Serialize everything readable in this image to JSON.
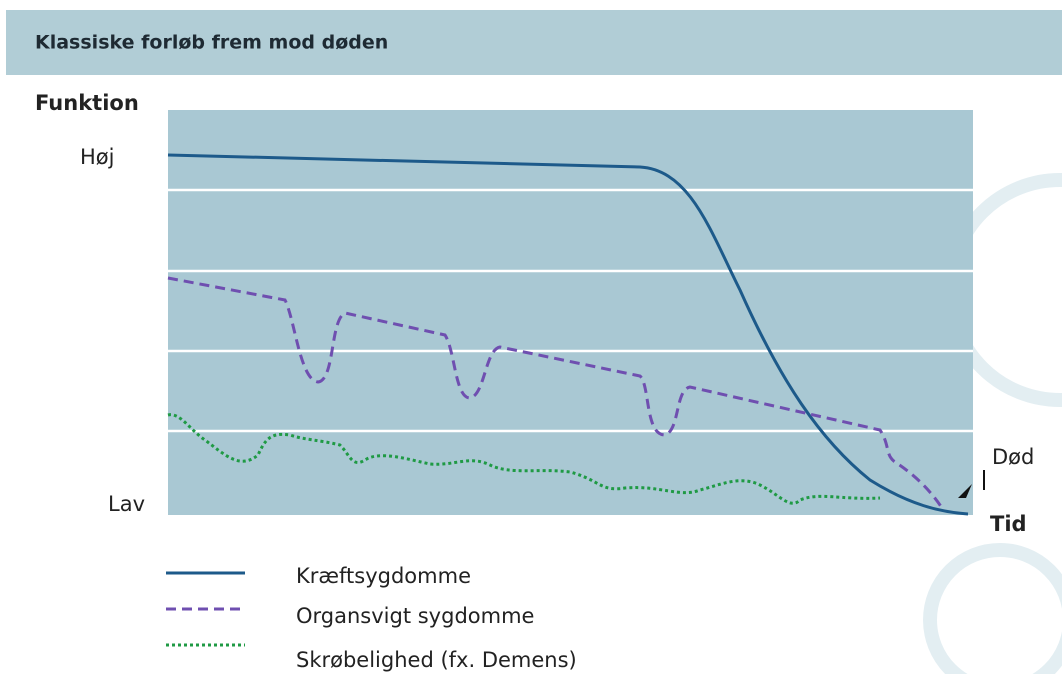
{
  "header": {
    "title": "Klassiske forløb frem mod døden"
  },
  "axis": {
    "y_title": "Funktion",
    "y_high": "Høj",
    "y_low": "Lav",
    "x_title": "Tid",
    "end_label": "Død"
  },
  "legend": [
    "Kræftsygdomme",
    "Organsvigt sygdomme",
    "Skrøbelighed (fx. Demens)"
  ]
}
